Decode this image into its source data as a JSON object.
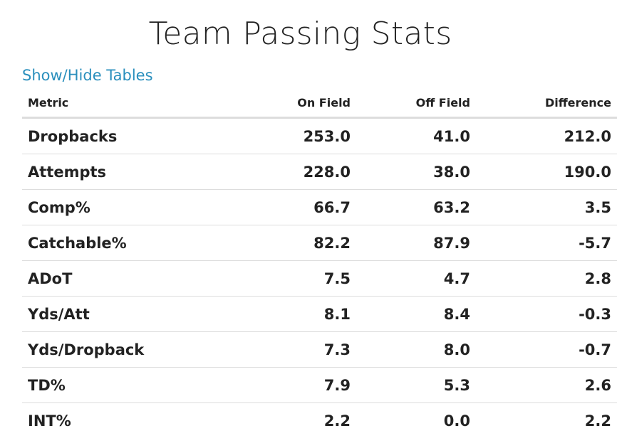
{
  "title": "Team Passing Stats",
  "toggle_label": "Show/Hide Tables",
  "colors": {
    "positive": "#1f2470",
    "negative": "#ec7b47",
    "link": "#2a8fbd",
    "metric_label": "#7a7a7a"
  },
  "table": {
    "headers": {
      "metric": "Metric",
      "on_field": "On Field",
      "off_field": "Off Field",
      "difference": "Difference"
    },
    "rows": [
      {
        "metric": "Dropbacks",
        "on_field": "253.0",
        "off_field": "41.0",
        "difference": "212.0"
      },
      {
        "metric": "Attempts",
        "on_field": "228.0",
        "off_field": "38.0",
        "difference": "190.0"
      },
      {
        "metric": "Comp%",
        "on_field": "66.7",
        "off_field": "63.2",
        "difference": "3.5"
      },
      {
        "metric": "Catchable%",
        "on_field": "82.2",
        "off_field": "87.9",
        "difference": "-5.7"
      },
      {
        "metric": "ADoT",
        "on_field": "7.5",
        "off_field": "4.7",
        "difference": "2.8"
      },
      {
        "metric": "Yds/Att",
        "on_field": "8.1",
        "off_field": "8.4",
        "difference": "-0.3"
      },
      {
        "metric": "Yds/Dropback",
        "on_field": "7.3",
        "off_field": "8.0",
        "difference": "-0.7"
      },
      {
        "metric": "TD%",
        "on_field": "7.9",
        "off_field": "5.3",
        "difference": "2.6"
      },
      {
        "metric": "INT%",
        "on_field": "2.2",
        "off_field": "0.0",
        "difference": "2.2"
      }
    ]
  }
}
